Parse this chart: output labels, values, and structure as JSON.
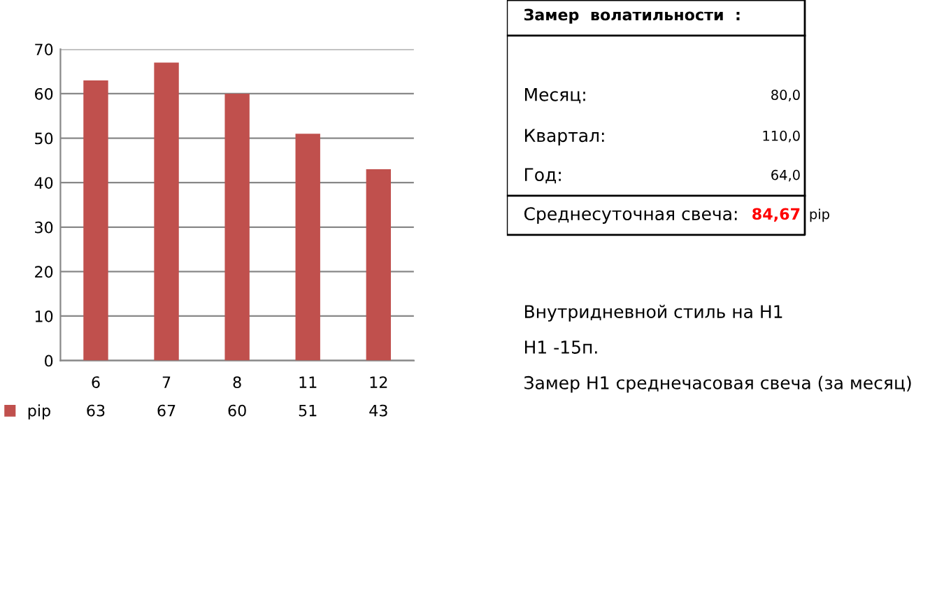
{
  "chart_data": [
    {
      "type": "bar",
      "categories": [
        "6",
        "7",
        "8",
        "11",
        "12"
      ],
      "series": [
        {
          "name": "pip",
          "color": "#c0504d",
          "values": [
            63,
            67,
            60,
            51,
            43
          ]
        }
      ],
      "ylim": [
        0,
        70
      ],
      "yticks": [
        0,
        10,
        20,
        30,
        40,
        50,
        60,
        70
      ],
      "grid": "y",
      "data_labels": true,
      "legend": "bottom left"
    },
    {
      "type": "other",
      "annotations": [
        "Замер  волатильности  :",
        "Месяц:",
        "80,0",
        "Квартал:",
        "110,0",
        "Год:",
        "64,0",
        "Среднесуточная свеча:",
        "84,67",
        "pip",
        "Внутридневной стиль на H1",
        "H1 -15п.",
        "Замер H1 среднечасовая свеча (за месяц)"
      ],
      "colors": [
        "#000000",
        "#000000",
        "#000000",
        "#000000",
        "#000000",
        "#000000",
        "#000000",
        "#000000",
        "#ff0000",
        "#000000",
        "#000000",
        "#000000",
        "#000000"
      ]
    }
  ]
}
